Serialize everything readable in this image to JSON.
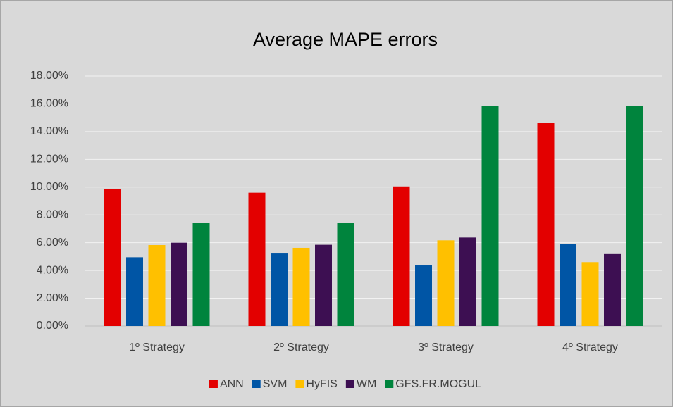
{
  "chart_data": {
    "type": "bar",
    "title": "Average MAPE errors",
    "categories": [
      "1º Strategy",
      "2º Strategy",
      "3º Strategy",
      "4º Strategy"
    ],
    "series": [
      {
        "name": "ANN",
        "color": "#e30000",
        "values": [
          9.85,
          9.6,
          10.05,
          14.65
        ]
      },
      {
        "name": "SVM",
        "color": "#0055a5",
        "values": [
          4.95,
          5.22,
          4.36,
          5.9
        ]
      },
      {
        "name": "HyFIS",
        "color": "#ffc000",
        "values": [
          5.83,
          5.63,
          6.17,
          4.6
        ]
      },
      {
        "name": "WM",
        "color": "#3d0f52",
        "values": [
          6.0,
          5.85,
          6.37,
          5.18
        ]
      },
      {
        "name": "GFS.FR.MOGUL",
        "color": "#00843d",
        "values": [
          7.45,
          7.45,
          15.82,
          15.82
        ]
      }
    ],
    "ylim": [
      0,
      18
    ],
    "yticks": [
      {
        "value": 0,
        "label": "0.00%"
      },
      {
        "value": 2,
        "label": "2.00%"
      },
      {
        "value": 4,
        "label": "4.00%"
      },
      {
        "value": 6,
        "label": "6.00%"
      },
      {
        "value": 8,
        "label": "8.00%"
      },
      {
        "value": 10,
        "label": "10.00%"
      },
      {
        "value": 12,
        "label": "12.00%"
      },
      {
        "value": 14,
        "label": "14.00%"
      },
      {
        "value": 16,
        "label": "16.00%"
      },
      {
        "value": 18,
        "label": "18.00%"
      }
    ],
    "grid": true,
    "legend": "bottom"
  }
}
